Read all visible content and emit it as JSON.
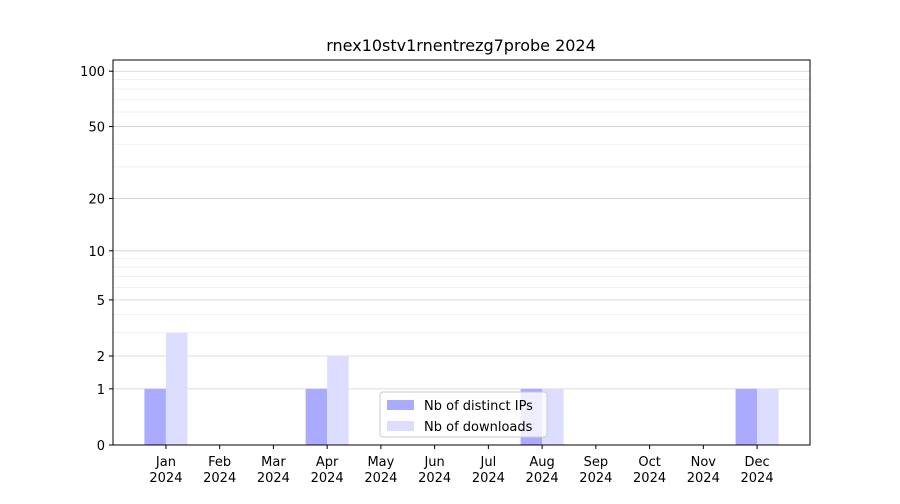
{
  "chart_data": {
    "type": "bar",
    "title": "rnex10stv1rnentrezg7probe 2024",
    "categories": [
      "Jan 2024",
      "Feb 2024",
      "Mar 2024",
      "Apr 2024",
      "May 2024",
      "Jun 2024",
      "Jul 2024",
      "Aug 2024",
      "Sep 2024",
      "Oct 2024",
      "Nov 2024",
      "Dec 2024"
    ],
    "series": [
      {
        "name": "Nb of distinct IPs",
        "color": "#aaaaff",
        "values": [
          1,
          0,
          0,
          1,
          0,
          0,
          0,
          1,
          0,
          0,
          0,
          1
        ]
      },
      {
        "name": "Nb of downloads",
        "color": "#ddddff",
        "values": [
          3,
          0,
          0,
          2,
          0,
          0,
          0,
          1,
          0,
          0,
          0,
          1
        ]
      }
    ],
    "yscale": "log1p",
    "ylim": [
      0,
      115
    ],
    "yticks": [
      0,
      1,
      2,
      5,
      10,
      20,
      50,
      100
    ],
    "yminor_ticks": [
      3,
      4,
      6,
      7,
      8,
      9,
      30,
      40,
      60,
      70,
      80,
      90
    ],
    "grid": true,
    "legend": "lower center"
  }
}
